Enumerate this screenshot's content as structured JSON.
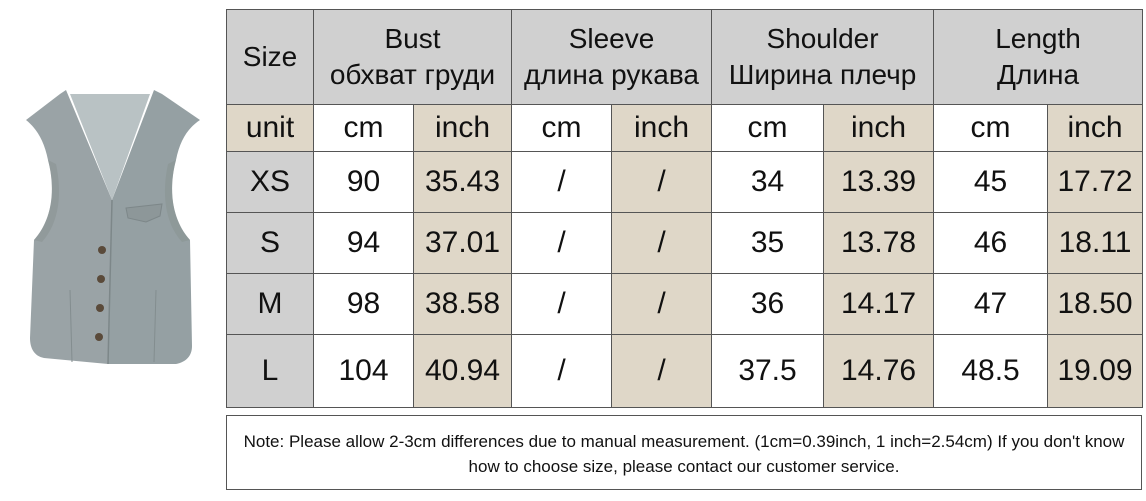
{
  "table": {
    "header": {
      "size": "Size",
      "bust": {
        "en": "Bust",
        "ru": "обхват груди"
      },
      "sleeve": {
        "en": "Sleeve",
        "ru": "длина рукава"
      },
      "shoulder": {
        "en": "Shoulder",
        "ru": "Ширина плечр"
      },
      "length": {
        "en": "Length",
        "ru": "Длина"
      }
    },
    "units": [
      "unit",
      "cm",
      "inch",
      "cm",
      "inch",
      "cm",
      "inch",
      "cm",
      "inch"
    ],
    "rows": [
      [
        "XS",
        "90",
        "35.43",
        "/",
        "/",
        "34",
        "13.39",
        "45",
        "17.72"
      ],
      [
        "S",
        "94",
        "37.01",
        "/",
        "/",
        "35",
        "13.78",
        "46",
        "18.11"
      ],
      [
        "M",
        "98",
        "38.58",
        "/",
        "/",
        "36",
        "14.17",
        "47",
        "18.50"
      ],
      [
        "L",
        "104",
        "40.94",
        "/",
        "/",
        "37.5",
        "14.76",
        "48.5",
        "19.09"
      ]
    ]
  },
  "note": "Note: Please allow 2-3cm differences due to manual measurement. (1cm=0.39inch, 1 inch=2.54cm)  If you don't know how to choose size, please contact our customer service.",
  "colors": {
    "header_gray": "#d0d0d0",
    "inch_tan": "#dfd7c8",
    "vest_gray": "#9aa3a6"
  }
}
